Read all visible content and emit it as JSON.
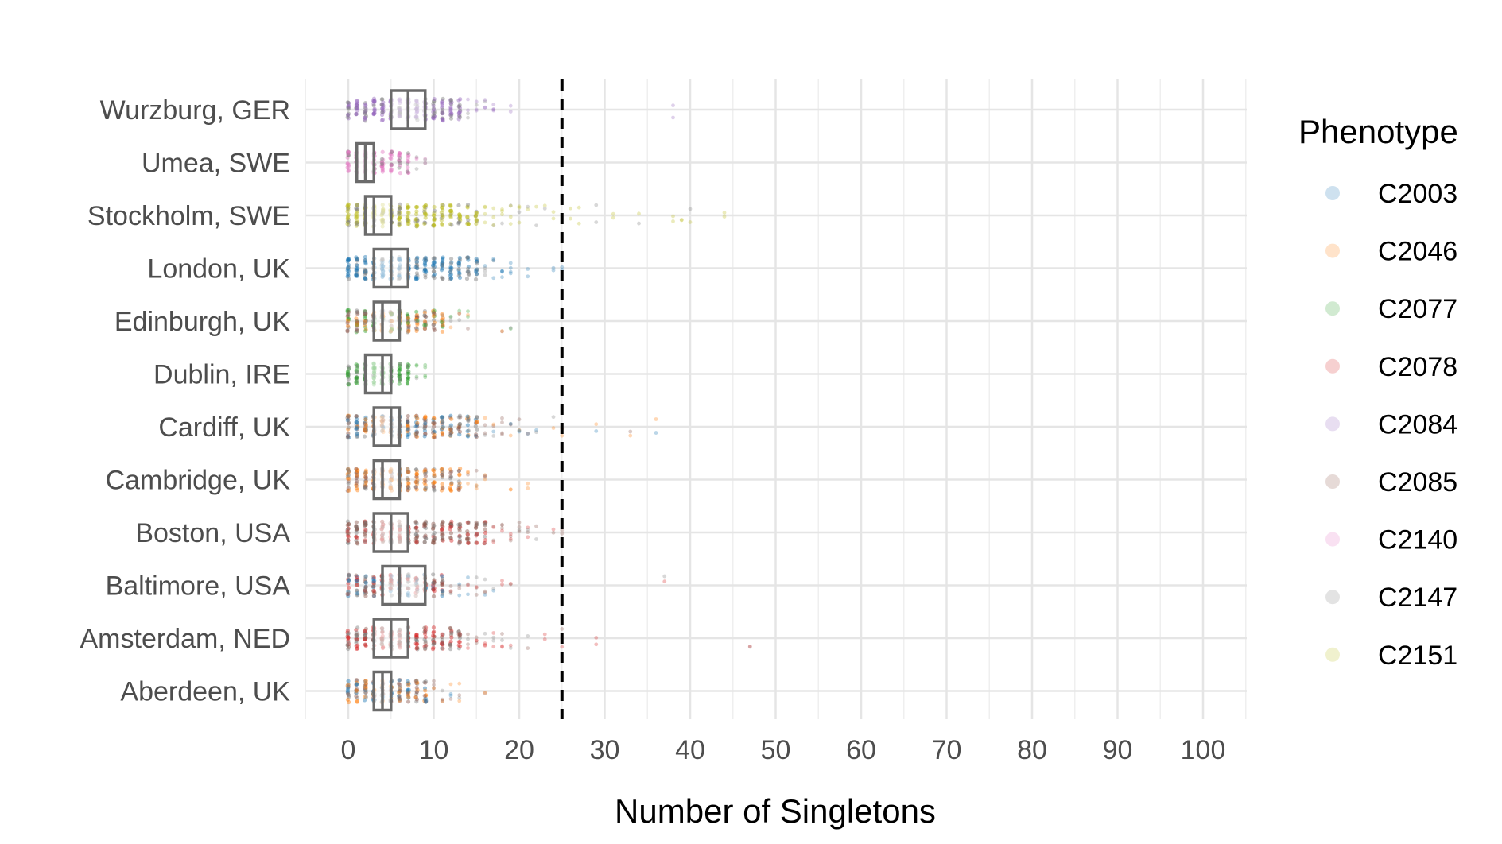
{
  "chart_data": {
    "type": "scatter",
    "subtype": "horizontal jitter strip plot with box summaries",
    "xlabel": "Number of Singletons",
    "xlim": [
      -5,
      105
    ],
    "x_ticks": [
      0,
      10,
      20,
      30,
      40,
      50,
      60,
      70,
      80,
      90,
      100
    ],
    "reference_line": {
      "x": 25,
      "style": "dashed",
      "color": "#000000"
    },
    "grid": true,
    "legend": {
      "title": "Phenotype",
      "position": "right",
      "entries": [
        {
          "name": "C2003",
          "color": "#1f77b4"
        },
        {
          "name": "C2046",
          "color": "#ff7f0e"
        },
        {
          "name": "C2077",
          "color": "#2ca02c"
        },
        {
          "name": "C2078",
          "color": "#d62728"
        },
        {
          "name": "C2084",
          "color": "#9467bd"
        },
        {
          "name": "C2085",
          "color": "#8c564b"
        },
        {
          "name": "C2140",
          "color": "#e377c2"
        },
        {
          "name": "C2147",
          "color": "#7f7f7f"
        },
        {
          "name": "C2151",
          "color": "#bcbd22"
        }
      ]
    },
    "categories": [
      {
        "label": "Wurzburg, GER",
        "q1": 5,
        "median": 7,
        "q3": 9,
        "dense_max": 13,
        "outliers": [
          14,
          15,
          16,
          17,
          19,
          38
        ],
        "palette": [
          "C2084",
          "C2084",
          "C2084",
          "C2147"
        ]
      },
      {
        "label": "Umea, SWE",
        "q1": 1,
        "median": 2,
        "q3": 3,
        "dense_max": 7,
        "outliers": [
          8,
          9
        ],
        "palette": [
          "C2140",
          "C2140",
          "C2140",
          "C2147"
        ]
      },
      {
        "label": "Stockholm, SWE",
        "q1": 2,
        "median": 3,
        "q3": 5,
        "dense_max": 15,
        "outliers": [
          16,
          17,
          18,
          19,
          20,
          21,
          22,
          23,
          24,
          26,
          27,
          29,
          31,
          34,
          38,
          39,
          40,
          44
        ],
        "palette": [
          "C2151",
          "C2151",
          "C2151",
          "C2147"
        ]
      },
      {
        "label": "London, UK",
        "q1": 3,
        "median": 5,
        "q3": 7,
        "dense_max": 15,
        "outliers": [
          16,
          17,
          18,
          19,
          21,
          24,
          25
        ],
        "palette": [
          "C2003",
          "C2003",
          "C2003",
          "C2147"
        ]
      },
      {
        "label": "Edinburgh, UK",
        "q1": 3,
        "median": 4,
        "q3": 6,
        "dense_max": 11,
        "outliers": [
          12,
          13,
          14,
          18,
          19
        ],
        "palette": [
          "C2046",
          "C2085",
          "C2077",
          "C2147"
        ]
      },
      {
        "label": "Dublin, IRE",
        "q1": 2,
        "median": 4,
        "q3": 5,
        "dense_max": 7,
        "outliers": [
          8,
          9
        ],
        "palette": [
          "C2077",
          "C2077",
          "C2077",
          "C2147"
        ]
      },
      {
        "label": "Cardiff, UK",
        "q1": 3,
        "median": 5,
        "q3": 6,
        "dense_max": 15,
        "outliers": [
          16,
          17,
          18,
          19,
          20,
          21,
          22,
          24,
          25,
          29,
          33,
          36
        ],
        "palette": [
          "C2085",
          "C2046",
          "C2003",
          "C2147"
        ]
      },
      {
        "label": "Cambridge, UK",
        "q1": 3,
        "median": 4,
        "q3": 6,
        "dense_max": 13,
        "outliers": [
          14,
          15,
          16,
          19,
          21
        ],
        "palette": [
          "C2046",
          "C2046",
          "C2085",
          "C2147"
        ]
      },
      {
        "label": "Boston, USA",
        "q1": 3,
        "median": 5,
        "q3": 7,
        "dense_max": 16,
        "outliers": [
          17,
          18,
          19,
          20,
          21,
          22,
          24,
          25
        ],
        "palette": [
          "C2085",
          "C2078",
          "C2085",
          "C2147"
        ]
      },
      {
        "label": "Baltimore, USA",
        "q1": 4,
        "median": 6,
        "q3": 9,
        "dense_max": 11,
        "outliers": [
          12,
          13,
          14,
          15,
          16,
          17,
          18,
          19,
          37
        ],
        "palette": [
          "C2085",
          "C2078",
          "C2147",
          "C2003"
        ]
      },
      {
        "label": "Amsterdam, NED",
        "q1": 3,
        "median": 5,
        "q3": 7,
        "dense_max": 13,
        "outliers": [
          14,
          15,
          16,
          17,
          18,
          19,
          21,
          23,
          25,
          29,
          47
        ],
        "palette": [
          "C2078",
          "C2085",
          "C2078",
          "C2147"
        ]
      },
      {
        "label": "Aberdeen, UK",
        "q1": 3,
        "median": 4,
        "q3": 5,
        "dense_max": 9,
        "outliers": [
          10,
          11,
          12,
          13,
          16
        ],
        "palette": [
          "C2046",
          "C2003",
          "C2085",
          "C2147"
        ]
      }
    ]
  }
}
